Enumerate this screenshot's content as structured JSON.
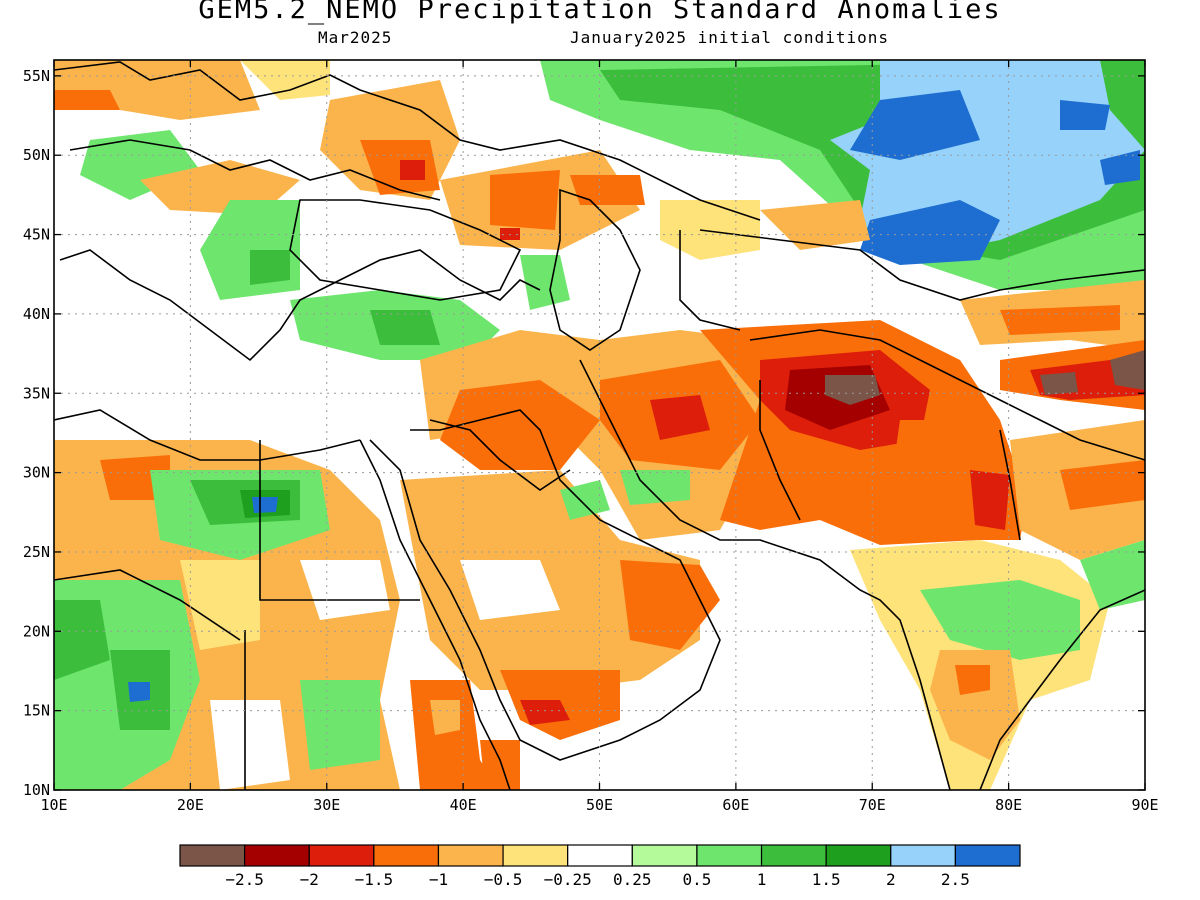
{
  "title": "GEM5.2_NEMO Precipitation Standard Anomalies",
  "subtitle_left": "Mar2025",
  "subtitle_right": "January2025 initial conditions",
  "map": {
    "lon_range": [
      10,
      90
    ],
    "lat_range": [
      10,
      56
    ],
    "lon_ticks": [
      "10E",
      "20E",
      "30E",
      "40E",
      "50E",
      "60E",
      "70E",
      "80E",
      "90E"
    ],
    "lat_ticks": [
      "10N",
      "15N",
      "20N",
      "25N",
      "30N",
      "35N",
      "40N",
      "45N",
      "50N",
      "55N"
    ],
    "grid": "dotted"
  },
  "colorbar": {
    "colors": [
      "#7a5548",
      "#a50000",
      "#dc1e0a",
      "#fa6e0a",
      "#fbb44c",
      "#fee27a",
      "#ffffff",
      "#b4fa9b",
      "#6ee66e",
      "#3cbe3c",
      "#1ea01e",
      "#96d2fa",
      "#1e6ed2"
    ],
    "labels": [
      "−2.5",
      "−2",
      "−1.5",
      "−1",
      "−0.5",
      "−0.25",
      "0.25",
      "0.5",
      "1",
      "1.5",
      "2",
      "2.5"
    ]
  }
}
